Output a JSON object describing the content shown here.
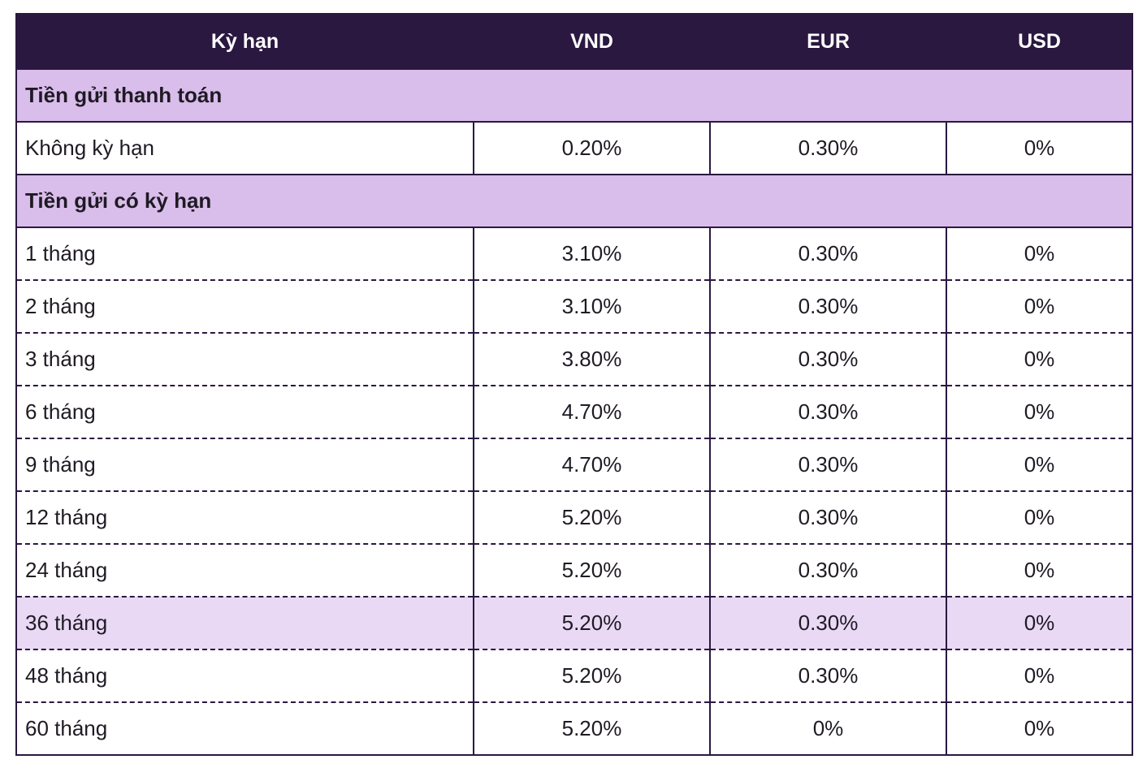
{
  "table": {
    "headers": [
      "Kỳ hạn",
      "VND",
      "EUR",
      "USD"
    ],
    "sections": [
      {
        "title": "Tiền gửi thanh toán",
        "rows": [
          {
            "term": "Không kỳ hạn",
            "vnd": "0.20%",
            "eur": "0.30%",
            "usd": "0%"
          }
        ]
      },
      {
        "title": "Tiền gửi có kỳ hạn",
        "rows": [
          {
            "term": "1 tháng",
            "vnd": "3.10%",
            "eur": "0.30%",
            "usd": "0%"
          },
          {
            "term": "2 tháng",
            "vnd": "3.10%",
            "eur": "0.30%",
            "usd": "0%"
          },
          {
            "term": "3 tháng",
            "vnd": "3.80%",
            "eur": "0.30%",
            "usd": "0%"
          },
          {
            "term": "6 tháng",
            "vnd": "4.70%",
            "eur": "0.30%",
            "usd": "0%"
          },
          {
            "term": "9 tháng",
            "vnd": "4.70%",
            "eur": "0.30%",
            "usd": "0%"
          },
          {
            "term": "12 tháng",
            "vnd": "5.20%",
            "eur": "0.30%",
            "usd": "0%"
          },
          {
            "term": "24 tháng",
            "vnd": "5.20%",
            "eur": "0.30%",
            "usd": "0%"
          },
          {
            "term": "36 tháng",
            "vnd": "5.20%",
            "eur": "0.30%",
            "usd": "0%"
          },
          {
            "term": "48 tháng",
            "vnd": "5.20%",
            "eur": "0.30%",
            "usd": "0%"
          },
          {
            "term": "60 tháng",
            "vnd": "5.20%",
            "eur": "0%",
            "usd": "0%"
          }
        ]
      }
    ]
  },
  "colors": {
    "header_bg": "#2a1840",
    "section_bg": "#d9bdea",
    "highlight_bg": "#e9d9f4"
  }
}
